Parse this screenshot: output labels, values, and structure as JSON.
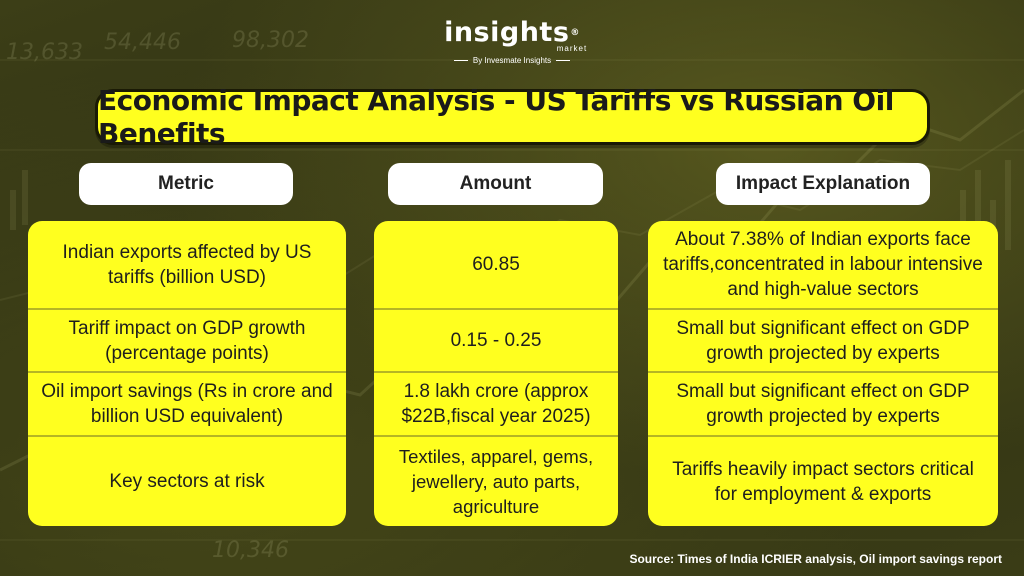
{
  "brand": {
    "name": "insights",
    "registered": "®",
    "sub": "market",
    "by": "By Invesmate Insights"
  },
  "background_numbers": [
    "13,633",
    "54,446",
    "98,302",
    "10,346"
  ],
  "title": "Economic Impact Analysis - US Tariffs vs Russian Oil Benefits",
  "headers": {
    "metric": "Metric",
    "amount": "Amount",
    "impact": "Impact Explanation"
  },
  "rows": [
    {
      "metric": "Indian exports affected by US tariffs (billion USD)",
      "amount": "60.85",
      "impact": "About 7.38% of Indian exports face tariffs,concentrated in labour intensive and high-value sectors"
    },
    {
      "metric": "Tariff impact on GDP growth (percentage points)",
      "amount": "0.15 - 0.25",
      "impact": "Small but significant effect on GDP growth projected by experts"
    },
    {
      "metric": "Oil import savings (Rs in crore and billion USD equivalent)",
      "amount": "1.8 lakh crore (approx $22B,fiscal year 2025)",
      "impact": "Small but significant effect on GDP growth projected by experts"
    },
    {
      "metric": "Key sectors at risk",
      "amount": "Textiles, apparel, gems, jewellery, auto parts, agriculture",
      "impact": "Tariffs heavily impact sectors critical for employment & exports"
    }
  ],
  "source": "Source: Times of India ICRIER analysis, Oil import savings report",
  "colors": {
    "card_yellow": "#ffff1f",
    "background_olive": "#33351a",
    "header_white": "#ffffff",
    "text_dark": "#1e1e1e"
  }
}
